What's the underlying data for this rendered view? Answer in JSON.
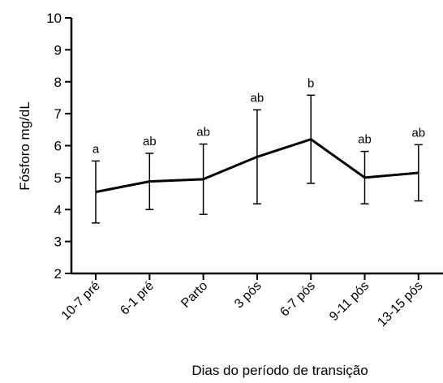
{
  "chart_data": {
    "type": "line",
    "x_label": "Dias do período de transição",
    "y_label": "Fósforo mg/dL",
    "categories": [
      "10-7 pré",
      "6-1 pré",
      "Parto",
      "3 pós",
      "6-7 pós",
      "9-11 pós",
      "13-15 pós"
    ],
    "series": [
      {
        "name": "Fósforo",
        "color": "#000000",
        "values": [
          4.55,
          4.88,
          4.95,
          5.65,
          6.2,
          5.0,
          5.15
        ],
        "errors": [
          0.97,
          0.88,
          1.1,
          1.47,
          1.38,
          0.82,
          0.88
        ]
      }
    ],
    "annotations": [
      "a",
      "ab",
      "ab",
      "ab",
      "b",
      "ab",
      "ab"
    ],
    "ylim": [
      2,
      10
    ],
    "yticks": [
      2,
      3,
      4,
      5,
      6,
      7,
      8,
      9,
      10
    ]
  }
}
